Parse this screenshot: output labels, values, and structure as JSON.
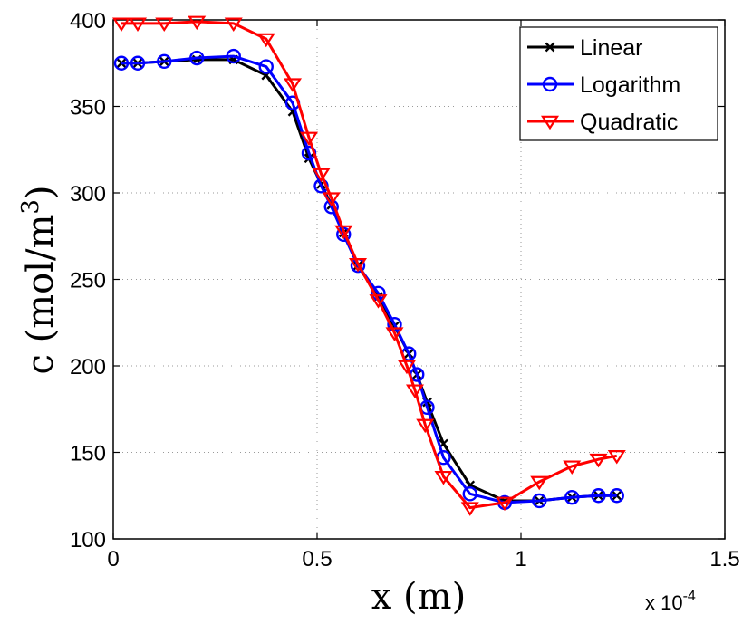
{
  "chart_data": {
    "type": "line",
    "xlabel": "x (m)",
    "ylabel": "c (mol/m",
    "ylabel_sup": "3",
    "ylabel_close": ")",
    "x_exponent_base": "x 10",
    "x_exponent_power": "-4",
    "xlim": [
      0,
      0.00015
    ],
    "ylim": [
      100,
      400
    ],
    "x_ticks": [
      0,
      5e-05,
      0.0001,
      0.00015
    ],
    "x_tick_labels": [
      "0",
      "0.5",
      "1",
      "1.5"
    ],
    "y_ticks": [
      100,
      150,
      200,
      250,
      300,
      350,
      400
    ],
    "y_tick_labels": [
      "100",
      "150",
      "200",
      "250",
      "300",
      "350",
      "400"
    ],
    "grid": true,
    "legend_position": "top-right",
    "series": [
      {
        "name": "Linear",
        "color": "#000000",
        "marker": "x",
        "x": [
          2e-06,
          6e-06,
          1.25e-05,
          2.05e-05,
          2.95e-05,
          3.75e-05,
          4.4e-05,
          4.8e-05,
          5.1e-05,
          5.35e-05,
          5.65e-05,
          6e-05,
          6.5e-05,
          6.9e-05,
          7.25e-05,
          7.45e-05,
          7.7e-05,
          8.1e-05,
          8.75e-05,
          9.6e-05,
          0.0001045,
          0.0001125,
          0.000119,
          0.0001235
        ],
        "y": [
          375,
          375,
          376,
          377,
          377,
          368,
          347,
          320,
          305,
          293,
          277,
          258,
          240,
          223,
          207,
          195,
          179,
          155,
          131,
          122,
          122,
          124,
          125,
          125
        ]
      },
      {
        "name": "Logarithm",
        "color": "#0000ff",
        "marker": "o",
        "x": [
          2e-06,
          6e-06,
          1.25e-05,
          2.05e-05,
          2.95e-05,
          3.75e-05,
          4.4e-05,
          4.8e-05,
          5.1e-05,
          5.35e-05,
          5.65e-05,
          6e-05,
          6.5e-05,
          6.9e-05,
          7.25e-05,
          7.45e-05,
          7.7e-05,
          8.1e-05,
          8.75e-05,
          9.6e-05,
          0.0001045,
          0.0001125,
          0.000119,
          0.0001235
        ],
        "y": [
          375,
          375,
          376,
          378,
          379,
          373,
          352,
          323,
          304,
          292,
          276,
          258,
          242,
          224,
          207,
          195,
          176,
          147,
          126,
          121,
          122,
          124,
          125,
          125
        ]
      },
      {
        "name": "Quadratic",
        "color": "#ff0000",
        "marker": "v",
        "x": [
          2e-06,
          6e-06,
          1.25e-05,
          2.05e-05,
          2.95e-05,
          3.75e-05,
          4.4e-05,
          4.8e-05,
          5.1e-05,
          5.35e-05,
          5.65e-05,
          6e-05,
          6.5e-05,
          6.9e-05,
          7.2e-05,
          7.4e-05,
          7.65e-05,
          8.1e-05,
          8.75e-05,
          9.6e-05,
          0.0001045,
          0.0001125,
          0.000119,
          0.0001235
        ],
        "y": [
          398,
          398,
          398,
          399,
          398,
          389,
          363,
          332,
          311,
          297,
          278,
          259,
          238,
          219,
          200,
          186,
          166,
          136,
          118,
          121,
          133,
          142,
          146,
          148
        ]
      }
    ]
  }
}
